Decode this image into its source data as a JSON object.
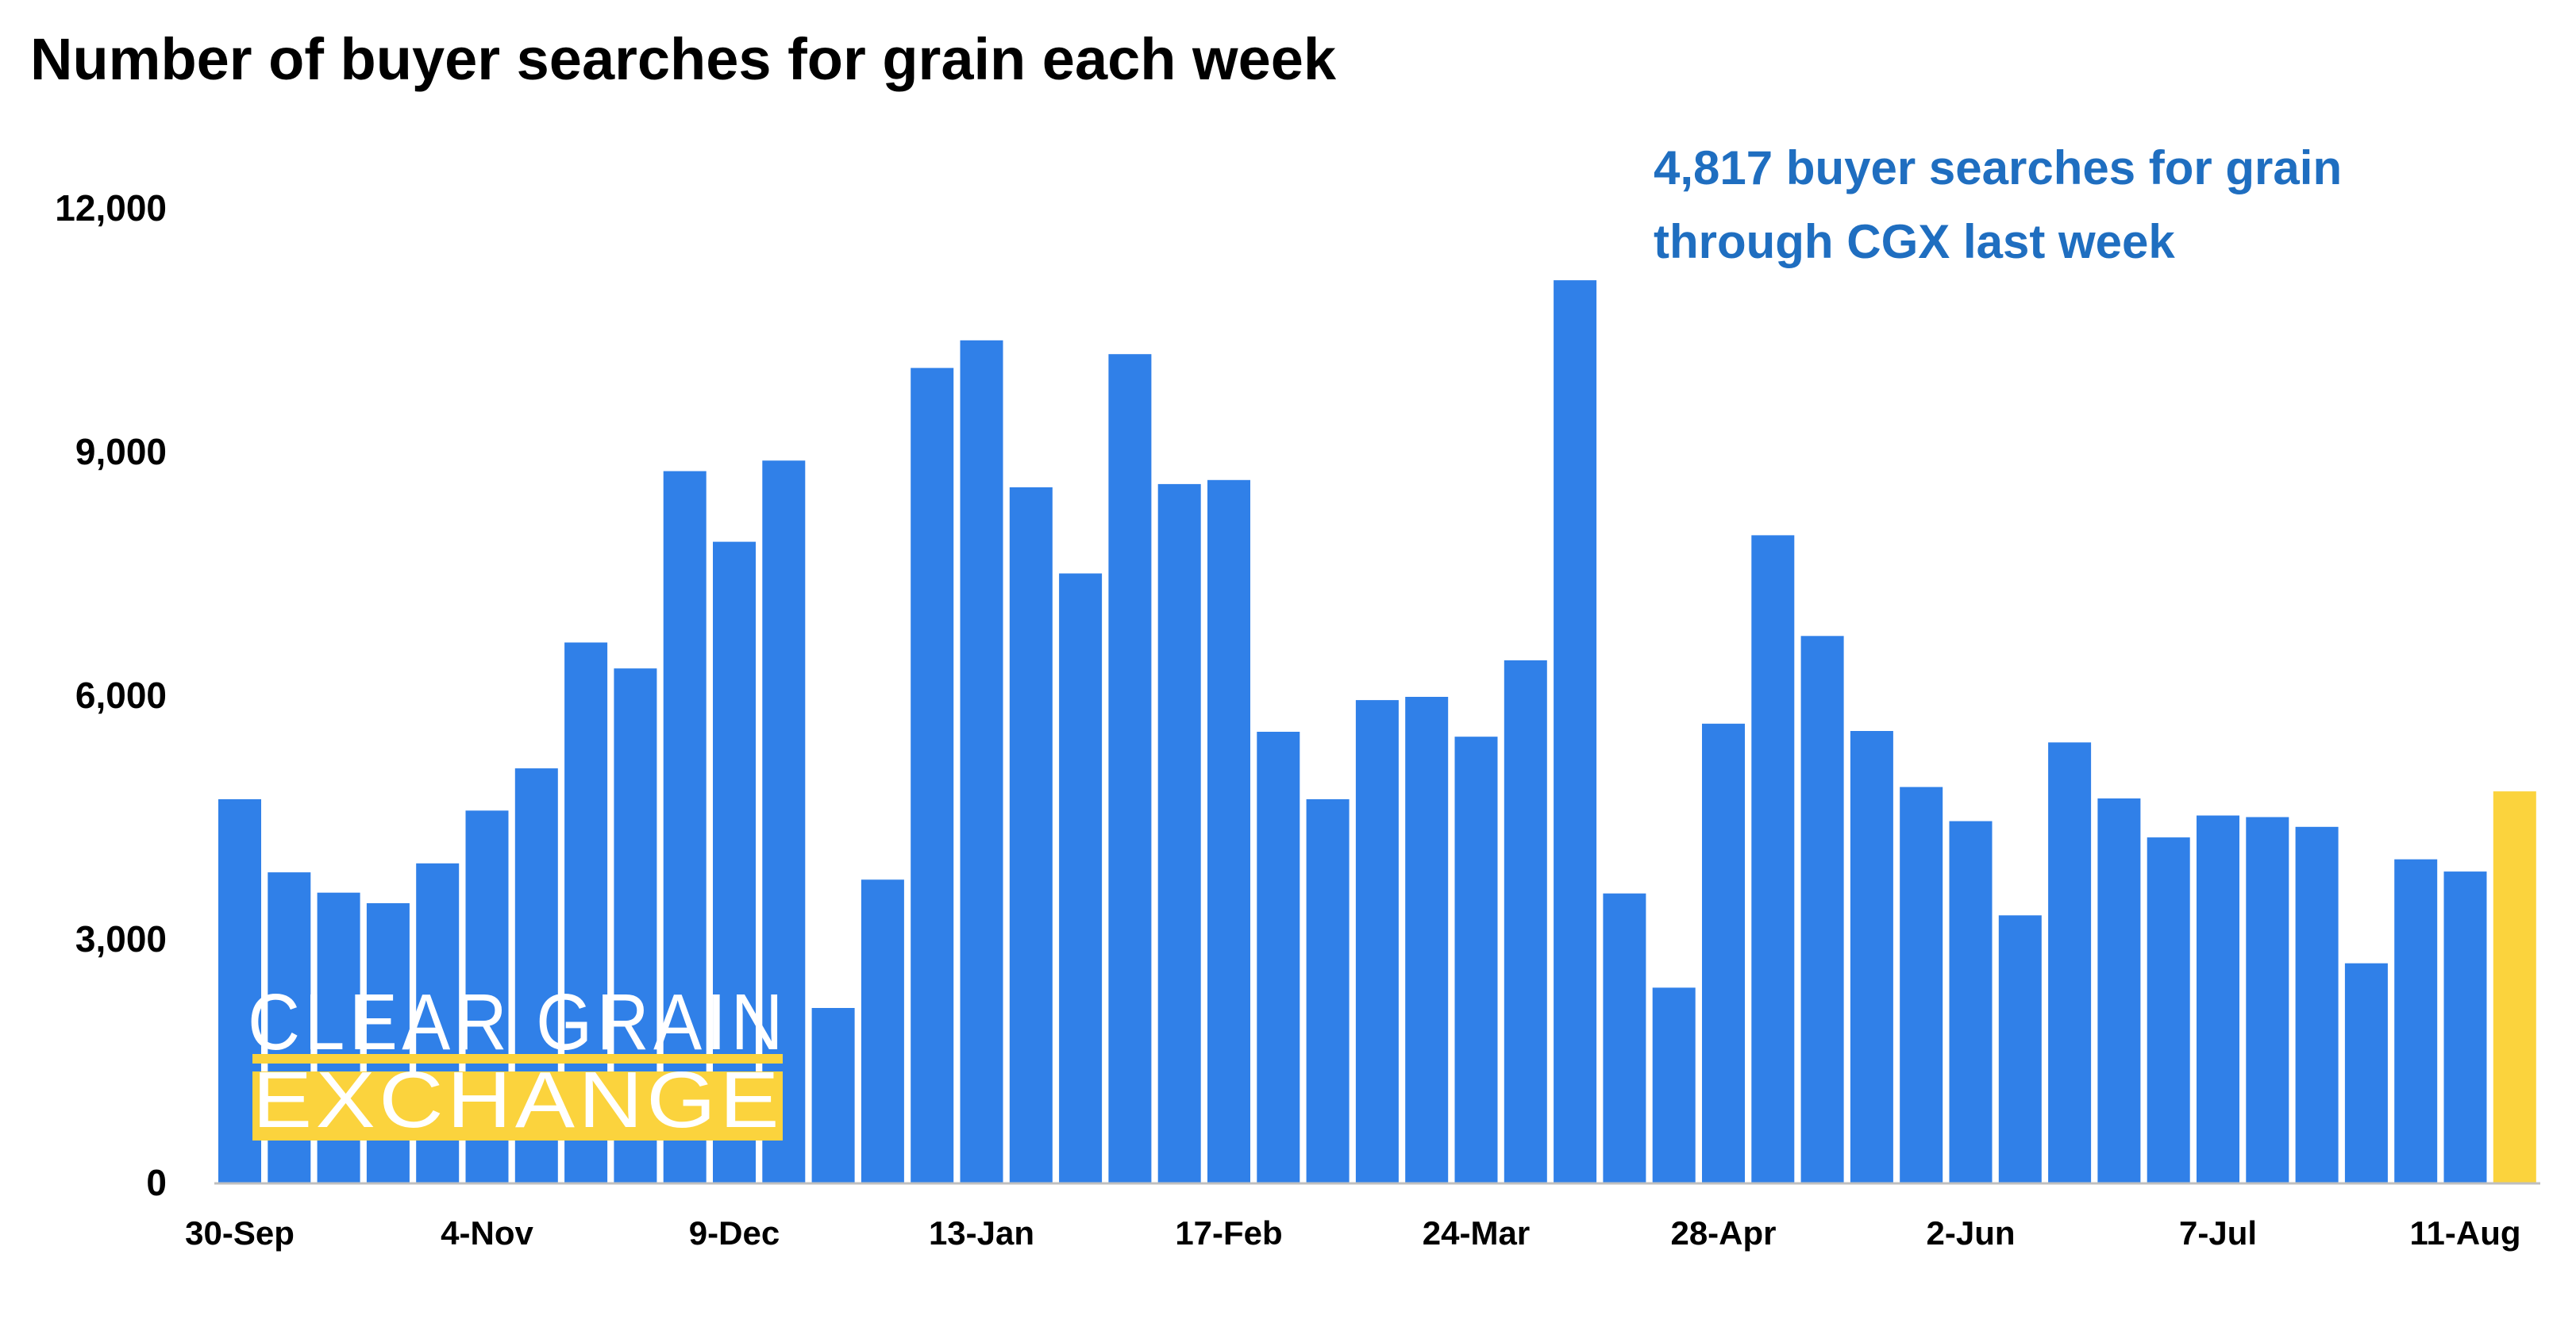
{
  "chart_data": {
    "type": "bar",
    "title": "Number of buyer searches for grain each week",
    "annotation": [
      "4,817 buyer searches for grain",
      "through CGX last week"
    ],
    "y_ticks": [
      "0",
      "3,000",
      "6,000",
      "9,000",
      "12,000"
    ],
    "ylim": [
      0,
      12000
    ],
    "x_tick_labels": [
      {
        "index": 0,
        "label": "30-Sep"
      },
      {
        "index": 5,
        "label": "4-Nov"
      },
      {
        "index": 10,
        "label": "9-Dec"
      },
      {
        "index": 15,
        "label": "13-Jan"
      },
      {
        "index": 20,
        "label": "17-Feb"
      },
      {
        "index": 25,
        "label": "24-Mar"
      },
      {
        "index": 30,
        "label": "28-Apr"
      },
      {
        "index": 35,
        "label": "2-Jun"
      },
      {
        "index": 40,
        "label": "7-Jul"
      },
      {
        "index": 45,
        "label": "11-Aug"
      }
    ],
    "values": [
      4720,
      3820,
      3570,
      3440,
      3930,
      4580,
      5100,
      6650,
      6330,
      8760,
      7890,
      8890,
      2150,
      3730,
      10030,
      10370,
      8560,
      7500,
      10200,
      8600,
      8650,
      5550,
      4720,
      5940,
      5980,
      5490,
      6430,
      11110,
      3560,
      2400,
      5650,
      7970,
      6730,
      5560,
      4870,
      4450,
      3290,
      5420,
      4730,
      4250,
      4520,
      4500,
      4380,
      2700,
      3980,
      3830,
      4817
    ],
    "highlight_index": 46,
    "colors": {
      "bar": "#3080E8",
      "highlight": "#FBD33D",
      "annotation": "#1F6EC0",
      "axis": "#BFBFBF"
    },
    "grid": false,
    "legend": "none"
  },
  "logo": {
    "line1": "CLEAR GRAIN",
    "line2": "EXCHANGE",
    "accent_color": "#FBD33D"
  }
}
